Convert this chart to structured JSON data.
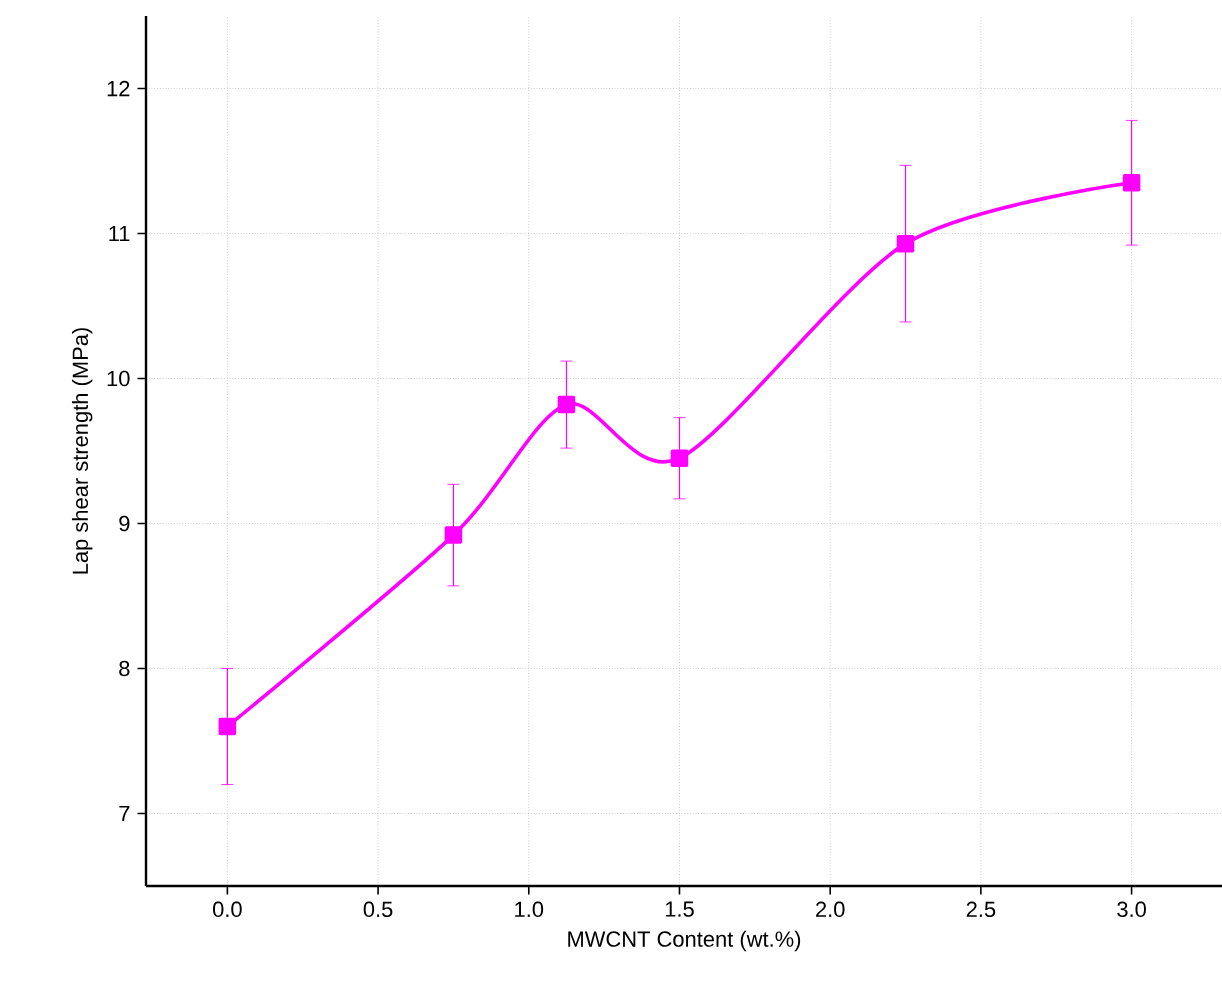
{
  "chart_data": {
    "type": "line",
    "xlabel": "MWCNT Content (wt.%)",
    "ylabel": "Lap shear strength (MPa)",
    "x": [
      0.0,
      0.75,
      1.125,
      1.5,
      2.25,
      3.0
    ],
    "series": [
      {
        "color": "#ff00ff",
        "values": [
          7.6,
          8.92,
          9.82,
          9.45,
          10.93,
          11.35
        ],
        "errors": [
          0.4,
          0.35,
          0.3,
          0.28,
          0.54,
          0.43
        ]
      }
    ],
    "xlim": [
      -0.27,
      3.3
    ],
    "ylim": [
      6.5,
      12.5
    ],
    "xticks": [
      {
        "value": 0,
        "label": "0.0"
      },
      {
        "value": 0.5,
        "label": "0.5"
      },
      {
        "value": 1,
        "label": "1.0"
      },
      {
        "value": 1.5,
        "label": "1.5"
      },
      {
        "value": 2,
        "label": "2.0"
      },
      {
        "value": 2.5,
        "label": "2.5"
      },
      {
        "value": 3,
        "label": "3.0"
      }
    ],
    "yticks": [
      7,
      8,
      9,
      10,
      11,
      12
    ],
    "grid": true,
    "marker": "square",
    "line_style": "solid"
  }
}
